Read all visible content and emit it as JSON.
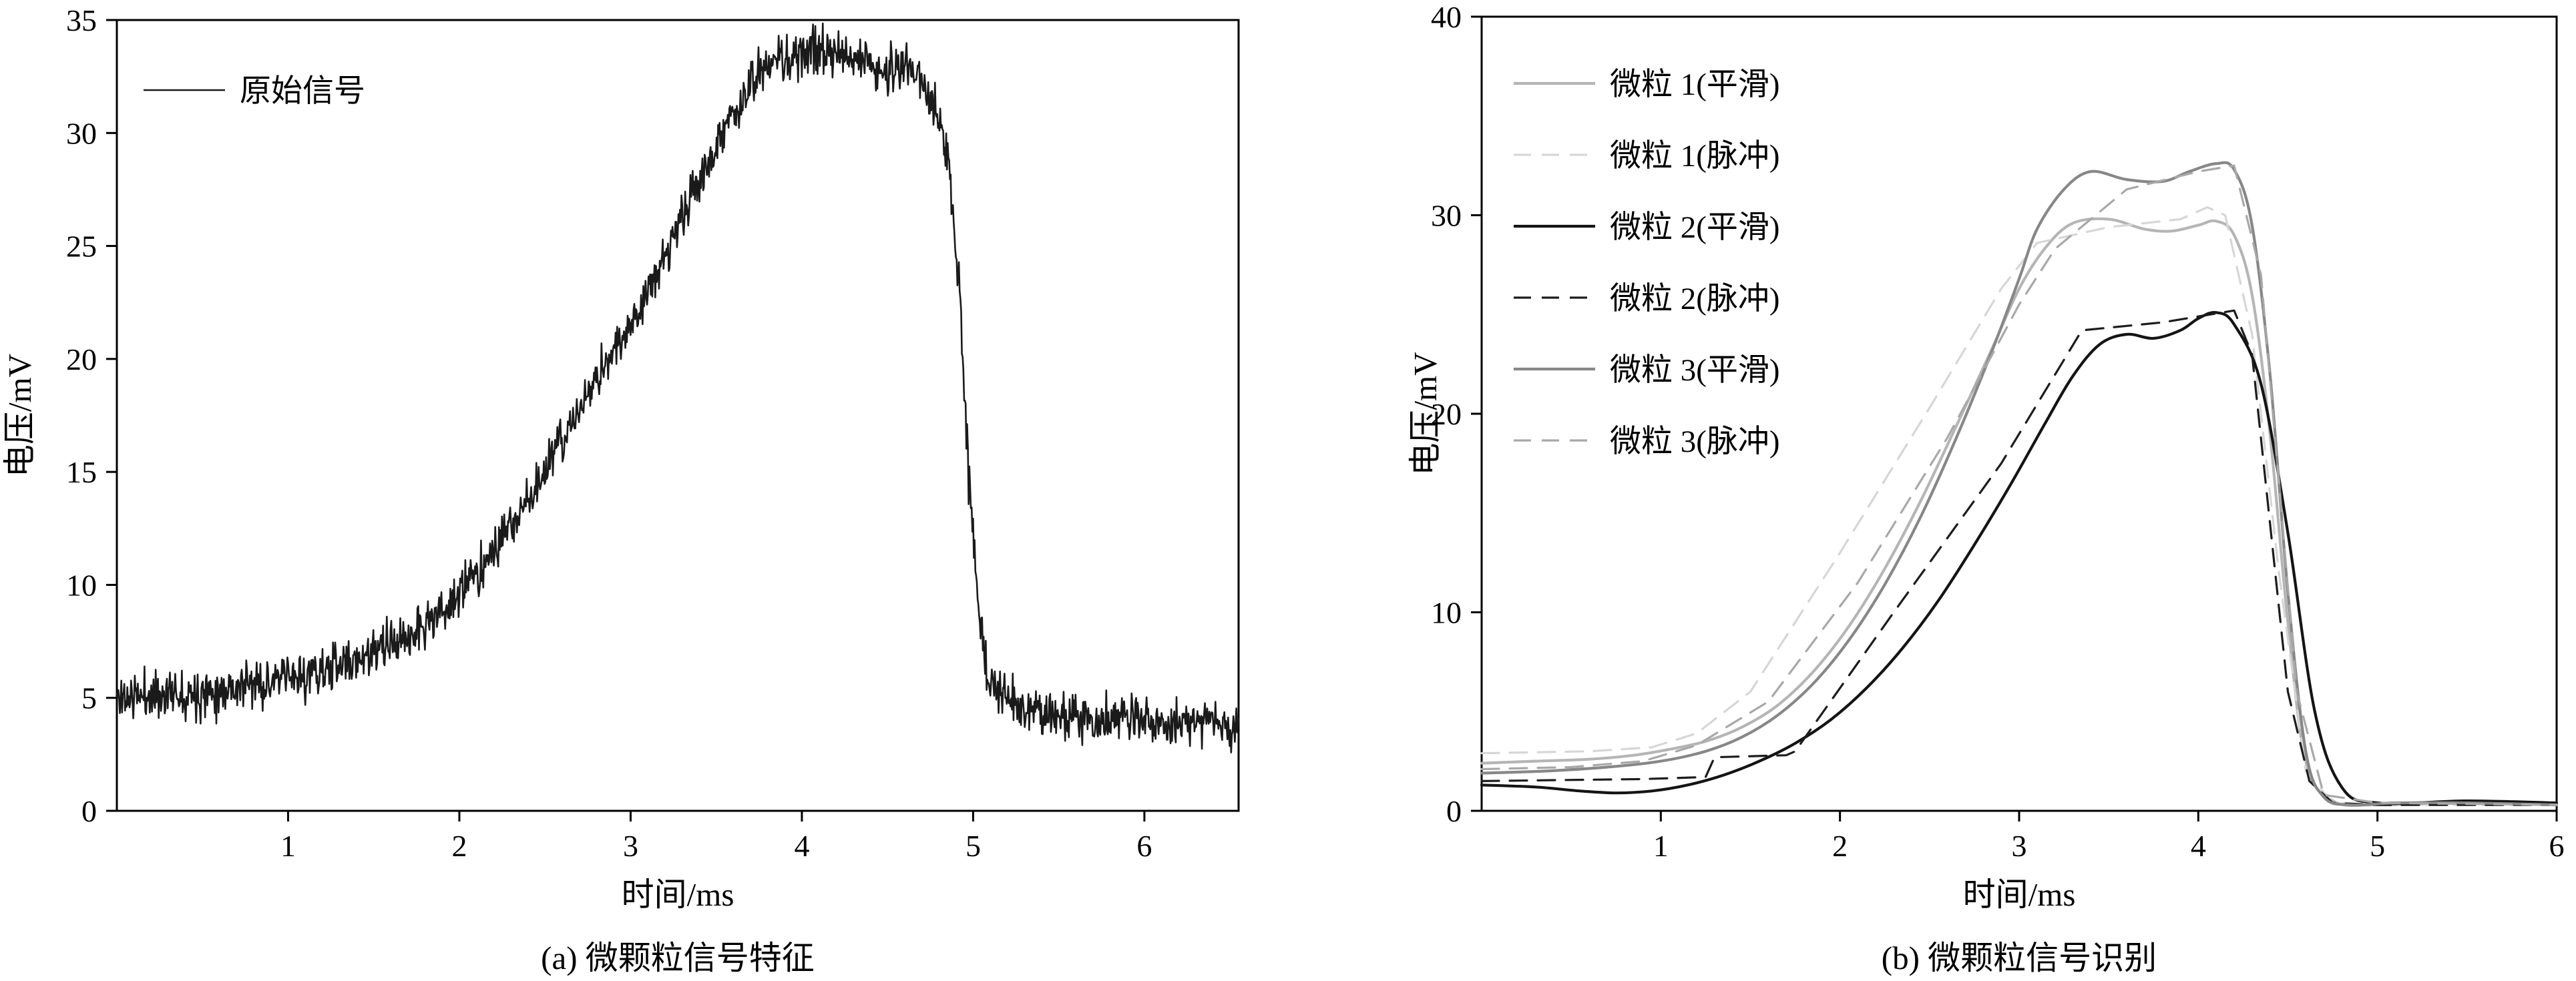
{
  "figure": {
    "background": "#ffffff"
  },
  "chart_data": [
    {
      "type": "line",
      "caption": "(a) 微颗粒信号特征",
      "xlabel": "时间/ms",
      "ylabel": "电压/mV",
      "xlim": [
        0,
        6.55
      ],
      "ylim": [
        0,
        35
      ],
      "xticks": [
        1,
        2,
        3,
        4,
        5,
        6
      ],
      "yticks": [
        0,
        5,
        10,
        15,
        20,
        25,
        30,
        35
      ],
      "grid": false,
      "legend_position": "top-left",
      "series": [
        {
          "name": "原始信号",
          "color": "#1a1a1a",
          "style": "solid",
          "width": 2.6,
          "smooth": false,
          "noise": 0.85,
          "noise_seed": 11,
          "x": [
            0,
            0.15,
            0.3,
            0.5,
            0.7,
            0.9,
            1.1,
            1.3,
            1.5,
            1.65,
            1.8,
            1.95,
            2.1,
            2.25,
            2.4,
            2.55,
            2.7,
            2.85,
            3.0,
            3.15,
            3.3,
            3.45,
            3.55,
            3.65,
            3.75,
            3.85,
            4.0,
            4.15,
            4.3,
            4.45,
            4.6,
            4.7,
            4.78,
            4.85,
            4.92,
            4.98,
            5.03,
            5.08,
            5.15,
            5.3,
            5.5,
            5.7,
            5.9,
            6.1,
            6.3,
            6.5
          ],
          "y": [
            5.0,
            5.1,
            5.2,
            5.3,
            5.5,
            5.7,
            6.0,
            6.4,
            7.0,
            7.5,
            8.2,
            9.2,
            10.5,
            12.0,
            13.8,
            15.7,
            17.7,
            19.7,
            21.6,
            23.8,
            26.2,
            28.6,
            30.2,
            31.5,
            32.5,
            33.2,
            33.6,
            33.5,
            33.2,
            32.9,
            32.8,
            32.3,
            31.3,
            29.0,
            23.0,
            14.0,
            9.0,
            6.3,
            5.0,
            4.4,
            4.2,
            4.0,
            4.1,
            3.9,
            4.0,
            3.8
          ]
        }
      ]
    },
    {
      "type": "line",
      "caption": "(b) 微颗粒信号识别",
      "xlabel": "时间/ms",
      "ylabel": "电压/mV",
      "xlim": [
        0,
        6
      ],
      "ylim": [
        0,
        40
      ],
      "xticks": [
        1,
        2,
        3,
        4,
        5,
        6
      ],
      "yticks": [
        0,
        10,
        20,
        30,
        40
      ],
      "grid": false,
      "legend_position": "top-left",
      "series": [
        {
          "name": "微粒 1(平滑)",
          "color": "#b5b5b5",
          "style": "solid",
          "width": 4.2,
          "smooth": true,
          "x": [
            0,
            0.3,
            0.6,
            0.85,
            1.05,
            1.25,
            1.45,
            1.65,
            1.85,
            2.05,
            2.25,
            2.45,
            2.65,
            2.85,
            3.0,
            3.15,
            3.3,
            3.5,
            3.7,
            3.85,
            4.0,
            4.1,
            4.2,
            4.3,
            4.4,
            4.5,
            4.6,
            4.75,
            5.0,
            5.5,
            6.0
          ],
          "y": [
            2.4,
            2.5,
            2.6,
            2.8,
            3.1,
            3.5,
            4.2,
            5.3,
            7.0,
            9.3,
            12.2,
            15.6,
            19.4,
            23.3,
            26.3,
            28.4,
            29.6,
            29.8,
            29.3,
            29.2,
            29.5,
            29.7,
            29.0,
            26.0,
            19.0,
            9.5,
            2.5,
            0.5,
            0.3,
            0.4,
            0.3
          ]
        },
        {
          "name": "微粒 1(脉冲)",
          "color": "#d6d6d6",
          "style": "dashed",
          "width": 3.2,
          "smooth": false,
          "x": [
            0,
            0.6,
            0.95,
            1.2,
            1.5,
            2.0,
            2.5,
            2.9,
            3.1,
            3.5,
            3.9,
            4.05,
            4.15,
            4.3,
            4.45,
            4.6,
            4.75,
            5.0,
            6.0
          ],
          "y": [
            2.9,
            3.0,
            3.2,
            3.9,
            6.0,
            13.0,
            20.3,
            26.3,
            28.6,
            29.4,
            29.8,
            30.4,
            30.0,
            24.0,
            12.0,
            2.0,
            0.4,
            0.3,
            0.3
          ]
        },
        {
          "name": "微粒 2(平滑)",
          "color": "#141414",
          "style": "solid",
          "width": 4.2,
          "smooth": true,
          "x": [
            0,
            0.3,
            0.55,
            0.75,
            0.95,
            1.15,
            1.35,
            1.55,
            1.75,
            1.95,
            2.15,
            2.35,
            2.55,
            2.75,
            2.95,
            3.15,
            3.3,
            3.45,
            3.6,
            3.75,
            3.9,
            4.0,
            4.1,
            4.2,
            4.35,
            4.5,
            4.65,
            4.8,
            5.0,
            5.5,
            6.0
          ],
          "y": [
            1.3,
            1.2,
            1.0,
            0.9,
            1.0,
            1.3,
            1.8,
            2.5,
            3.4,
            4.6,
            6.2,
            8.2,
            10.6,
            13.4,
            16.4,
            19.6,
            21.9,
            23.5,
            24.0,
            23.8,
            24.2,
            24.8,
            25.1,
            24.5,
            21.5,
            14.0,
            5.0,
            1.2,
            0.4,
            0.5,
            0.4
          ]
        },
        {
          "name": "微粒 2(脉冲)",
          "color": "#1c1c1c",
          "style": "dashed",
          "width": 3.2,
          "smooth": false,
          "x": [
            0,
            0.9,
            1.25,
            1.3,
            1.7,
            1.75,
            2.3,
            2.9,
            3.35,
            3.8,
            4.2,
            4.3,
            4.5,
            4.62,
            4.75,
            5.0,
            6.0
          ],
          "y": [
            1.5,
            1.6,
            1.7,
            2.7,
            2.8,
            3.0,
            10.0,
            17.5,
            24.2,
            24.6,
            25.2,
            23.0,
            6.0,
            1.5,
            0.4,
            0.3,
            0.3
          ]
        },
        {
          "name": "微粒 3(平滑)",
          "color": "#878787",
          "style": "solid",
          "width": 4.2,
          "smooth": true,
          "x": [
            0,
            0.35,
            0.7,
            1.0,
            1.25,
            1.45,
            1.65,
            1.85,
            2.05,
            2.25,
            2.45,
            2.65,
            2.85,
            3.0,
            3.1,
            3.25,
            3.4,
            3.6,
            3.8,
            3.95,
            4.1,
            4.2,
            4.3,
            4.4,
            4.5,
            4.6,
            4.7,
            4.85,
            5.1,
            5.5,
            6.0
          ],
          "y": [
            1.9,
            2.0,
            2.2,
            2.5,
            3.0,
            3.7,
            4.8,
            6.4,
            8.6,
            11.4,
            14.8,
            18.8,
            23.2,
            26.8,
            29.3,
            31.3,
            32.2,
            31.8,
            31.7,
            32.2,
            32.6,
            32.3,
            29.5,
            22.0,
            11.0,
            3.0,
            0.7,
            0.3,
            0.4,
            0.4,
            0.3
          ]
        },
        {
          "name": "微粒 3(脉冲)",
          "color": "#a8a8a8",
          "style": "dashed",
          "width": 3.2,
          "smooth": false,
          "x": [
            0,
            0.5,
            0.9,
            1.2,
            1.6,
            2.1,
            2.6,
            3.0,
            3.2,
            3.6,
            4.0,
            4.2,
            4.35,
            4.55,
            4.7,
            5.0,
            6.0
          ],
          "y": [
            2.1,
            2.2,
            2.5,
            3.3,
            5.5,
            11.5,
            18.8,
            25.5,
            28.3,
            31.3,
            32.2,
            32.5,
            27.0,
            6.0,
            0.8,
            0.4,
            0.3
          ]
        }
      ]
    }
  ]
}
